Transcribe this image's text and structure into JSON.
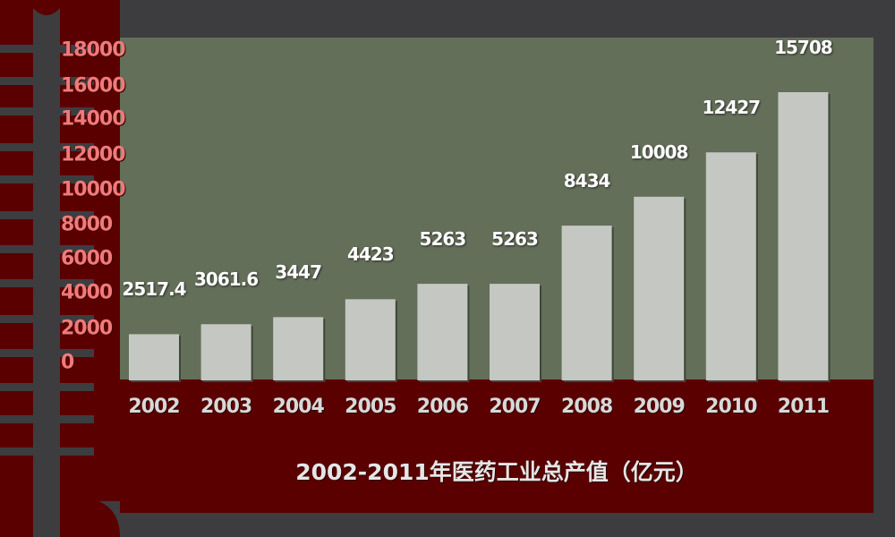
{
  "chart_data": {
    "type": "bar",
    "title": "2002-2011年医药工业总产值（亿元）",
    "categories": [
      "2002",
      "2003",
      "2004",
      "2005",
      "2006",
      "2007",
      "2008",
      "2009",
      "2010",
      "2011"
    ],
    "values": [
      2517.4,
      3061.6,
      3447,
      4423,
      5263,
      5263,
      8434,
      10008,
      12427,
      15708
    ],
    "value_labels": [
      "2517.4",
      "3061.6",
      "3447",
      "4423",
      "5263",
      "5263",
      "8434",
      "10008",
      "12427",
      "15708"
    ],
    "y_ticks": [
      "0",
      "2000",
      "4000",
      "6000",
      "8000",
      "10000",
      "12000",
      "14000",
      "16000",
      "18000"
    ],
    "ylim": [
      0,
      18000
    ],
    "xlabel": "",
    "ylabel": "",
    "grid": false,
    "legend": "none"
  },
  "colors": {
    "page_background": "#3d3d3f",
    "plot_background": "#636f58",
    "axis_band": "#5a0000",
    "bar_fill": "#c5c8c2",
    "tick_label": "#f07a7a",
    "data_label": "#ffffff",
    "category_label": "#d8d8d8"
  }
}
